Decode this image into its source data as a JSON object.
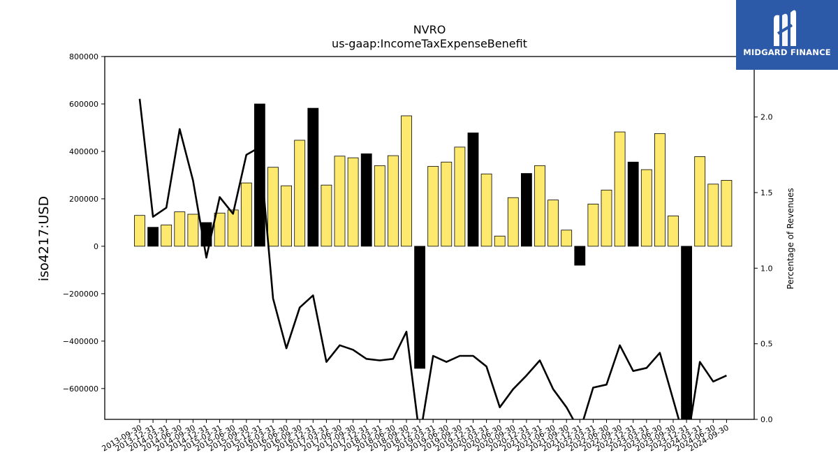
{
  "chart_data": {
    "type": "bar",
    "title": "NVRO",
    "subtitle": "us-gaap:IncomeTaxExpenseBenefit",
    "ylabel": "iso4217:USD",
    "y2label": "Percentage of Revenues",
    "ylim": [
      -730000,
      800000
    ],
    "y2lim": [
      0,
      2.4
    ],
    "yticks": [
      800000,
      600000,
      400000,
      200000,
      0,
      -200000,
      -400000,
      -600000
    ],
    "y2ticks": [
      0.0,
      0.5,
      1.0,
      1.5,
      2.0
    ],
    "categories": [
      "2013-09-30",
      "2013-12-31",
      "2014-03-31",
      "2014-06-30",
      "2014-09-30",
      "2014-12-31",
      "2015-03-31",
      "2015-06-30",
      "2015-09-30",
      "2015-12-31",
      "2016-03-31",
      "2016-06-30",
      "2016-09-30",
      "2016-12-31",
      "2017-03-31",
      "2017-06-30",
      "2017-09-30",
      "2017-12-31",
      "2018-03-31",
      "2018-06-30",
      "2018-09-30",
      "2018-12-31",
      "2019-03-31",
      "2019-06-30",
      "2019-09-30",
      "2019-12-31",
      "2020-03-31",
      "2020-06-30",
      "2020-09-30",
      "2020-12-31",
      "2021-03-31",
      "2021-06-30",
      "2021-09-30",
      "2021-12-31",
      "2022-03-31",
      "2022-06-30",
      "2022-09-30",
      "2022-12-31",
      "2023-03-31",
      "2023-06-30",
      "2023-09-30",
      "2023-12-31",
      "2024-03-31",
      "2024-06-30",
      "2024-09-30"
    ],
    "series": [
      {
        "type": "bar",
        "values": [
          130000,
          80000,
          90000,
          145000,
          135000,
          100000,
          140000,
          153000,
          267000,
          600000,
          333000,
          255000,
          447000,
          582000,
          258000,
          380000,
          373000,
          390000,
          340000,
          382000,
          550000,
          -515000,
          337000,
          355000,
          418000,
          478000,
          305000,
          43000,
          205000,
          307000,
          340000,
          195000,
          68000,
          -80000,
          178000,
          237000,
          482000,
          355000,
          323000,
          475000,
          128000,
          -780000,
          378000,
          262000,
          278000
        ],
        "highlight": [
          false,
          true,
          false,
          false,
          false,
          true,
          false,
          false,
          false,
          true,
          false,
          false,
          false,
          true,
          false,
          false,
          false,
          true,
          false,
          false,
          false,
          true,
          false,
          false,
          false,
          true,
          false,
          false,
          false,
          true,
          false,
          false,
          false,
          true,
          false,
          false,
          false,
          true,
          false,
          false,
          false,
          true,
          false,
          false,
          false
        ]
      },
      {
        "type": "line",
        "axis": "right",
        "values": [
          2.12,
          1.34,
          1.4,
          1.92,
          1.58,
          1.07,
          1.47,
          1.36,
          1.75,
          1.8,
          0.8,
          0.47,
          0.74,
          0.82,
          0.38,
          0.49,
          0.46,
          0.4,
          0.39,
          0.4,
          0.58,
          -0.12,
          0.42,
          0.38,
          0.42,
          0.42,
          0.35,
          0.08,
          0.2,
          0.29,
          0.39,
          0.2,
          0.08,
          -0.08,
          0.21,
          0.23,
          0.49,
          0.32,
          0.34,
          0.44,
          0.13,
          -0.18,
          0.38,
          0.25,
          0.29
        ]
      }
    ],
    "colors": {
      "bar": "#fde96e",
      "bar_highlight": "#000000",
      "line": "#000000"
    }
  },
  "logo": {
    "text": "MIDGARD FINANCE"
  }
}
